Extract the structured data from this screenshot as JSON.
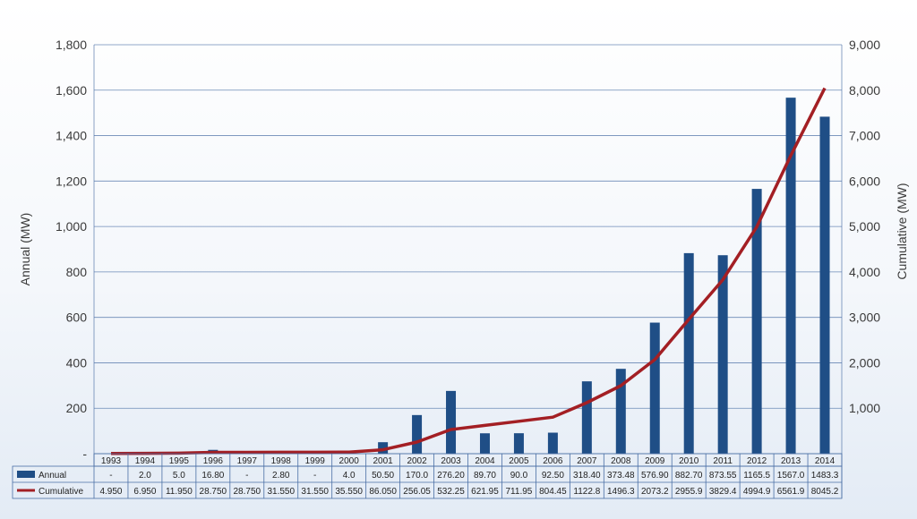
{
  "chart_data": {
    "type": "bar",
    "categories": [
      "1993",
      "1994",
      "1995",
      "1996",
      "1997",
      "1998",
      "1999",
      "2000",
      "2001",
      "2002",
      "2003",
      "2004",
      "2005",
      "2006",
      "2007",
      "2008",
      "2009",
      "2010",
      "2011",
      "2012",
      "2013",
      "2014"
    ],
    "series": [
      {
        "name": "Annual",
        "type": "bar",
        "axis": "left",
        "color": "#1f4e86",
        "values": [
          0,
          2.0,
          5.0,
          16.8,
          0,
          2.8,
          0,
          4.0,
          50.5,
          170.0,
          276.2,
          89.7,
          90.0,
          92.5,
          318.4,
          373.48,
          576.9,
          882.7,
          873.55,
          1165.5,
          1567.0,
          1483.3
        ],
        "labels": [
          "-",
          "2.0",
          "5.0",
          "16.80",
          "-",
          "2.80",
          "-",
          "4.0",
          "50.50",
          "170.0",
          "276.20",
          "89.70",
          "90.0",
          "92.50",
          "318.40",
          "373.48",
          "576.90",
          "882.70",
          "873.55",
          "1165.5",
          "1567.0",
          "1483.3"
        ]
      },
      {
        "name": "Cumulative",
        "type": "line",
        "axis": "right",
        "color": "#a31f24",
        "values": [
          4.95,
          6.95,
          11.95,
          28.75,
          28.75,
          31.55,
          31.55,
          35.55,
          86.05,
          256.05,
          532.25,
          621.95,
          711.95,
          804.45,
          1122.8,
          1496.3,
          2073.2,
          2955.9,
          3829.4,
          4994.9,
          6561.9,
          8045.2
        ],
        "labels": [
          "4.950",
          "6.950",
          "11.950",
          "28.750",
          "28.750",
          "31.550",
          "31.550",
          "35.550",
          "86.050",
          "256.05",
          "532.25",
          "621.95",
          "711.95",
          "804.45",
          "1122.8",
          "1496.3",
          "2073.2",
          "2955.9",
          "3829.4",
          "4994.9",
          "6561.9",
          "8045.2"
        ]
      }
    ],
    "ylabel": "Annual (MW)",
    "ylabel_right": "Cumulative (MW)",
    "ylim": [
      0,
      1800
    ],
    "ylim_right": [
      0,
      9000
    ],
    "yticks": [
      "-",
      "200",
      "400",
      "600",
      "800",
      "1,000",
      "1,200",
      "1,400",
      "1,600",
      "1,800"
    ],
    "yticks_right": [
      "1,000",
      "2,000",
      "3,000",
      "4,000",
      "5,000",
      "6,000",
      "7,000",
      "8,000",
      "9,000"
    ],
    "grid": true,
    "legend": "data table below chart"
  }
}
